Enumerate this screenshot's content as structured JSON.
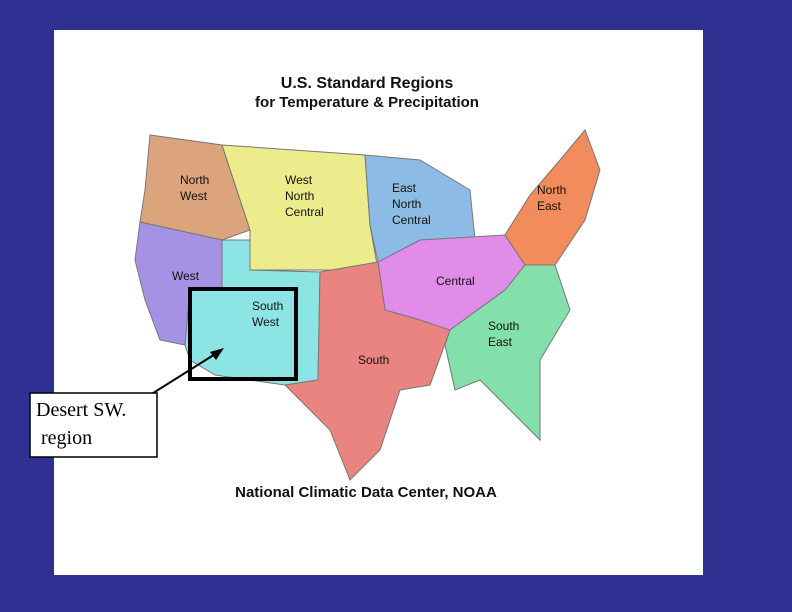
{
  "header": {
    "title_lines": [
      "U.S. Standard Regions",
      "for Temperature & Precipitation"
    ]
  },
  "regions": [
    {
      "label_lines": [
        "North",
        "West"
      ]
    },
    {
      "label_lines": [
        "West",
        "North",
        "Central"
      ]
    },
    {
      "label_lines": [
        "East",
        "North",
        "Central"
      ]
    },
    {
      "label_lines": [
        "North",
        "East"
      ]
    },
    {
      "label_lines": [
        "West"
      ]
    },
    {
      "label_lines": [
        "South",
        "West"
      ]
    },
    {
      "label_lines": [
        "Central"
      ]
    },
    {
      "label_lines": [
        "South"
      ]
    },
    {
      "label_lines": [
        "South",
        "East"
      ]
    }
  ],
  "footer": "National Climatic Data Center, NOAA",
  "callout": {
    "lines": [
      "Desert SW.",
      " region"
    ]
  }
}
